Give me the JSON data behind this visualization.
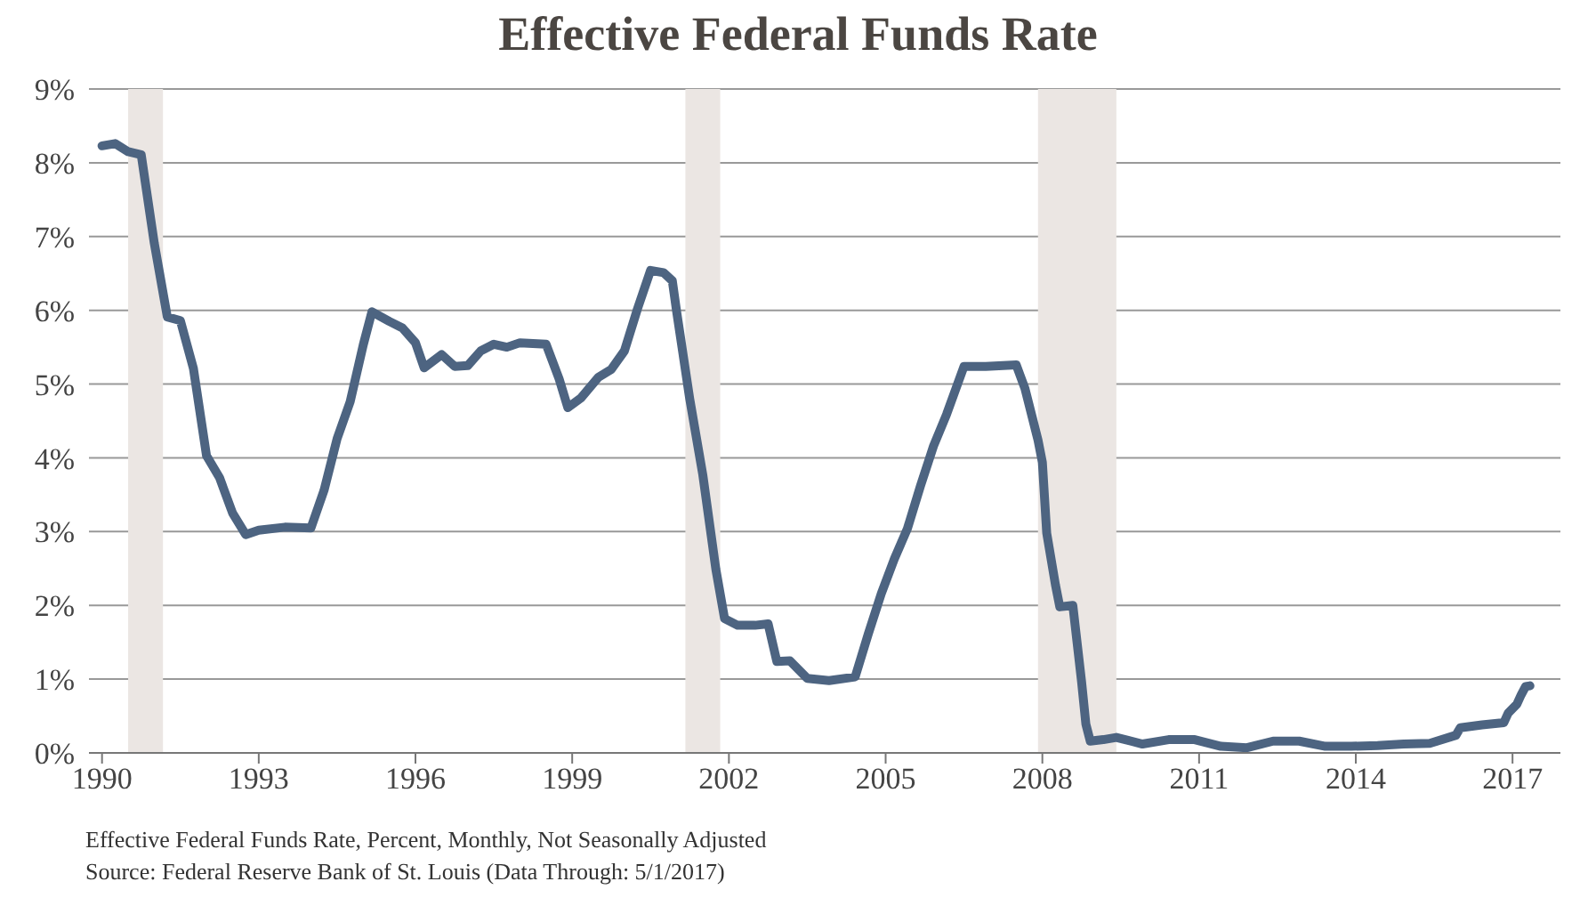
{
  "chart_data": {
    "type": "line",
    "title": "Effective Federal Funds Rate",
    "annotations": [
      "Effective Federal Funds Rate, Percent, Monthly, Not Seasonally Adjusted",
      "Source: Federal Reserve Bank of St. Louis (Data Through: 5/1/2017)"
    ],
    "x": [
      "1990-01",
      "1990-04",
      "1990-07",
      "1990-10",
      "1991-01",
      "1991-04",
      "1991-07",
      "1991-10",
      "1992-01",
      "1992-04",
      "1992-07",
      "1992-10",
      "1993-01",
      "1993-07",
      "1994-01",
      "1994-04",
      "1994-07",
      "1994-10",
      "1995-01",
      "1995-03",
      "1995-07",
      "1995-10",
      "1996-01",
      "1996-03",
      "1996-07",
      "1996-10",
      "1997-01",
      "1997-04",
      "1997-07",
      "1997-10",
      "1998-01",
      "1998-07",
      "1998-10",
      "1998-12",
      "1999-03",
      "1999-07",
      "1999-10",
      "2000-01",
      "2000-04",
      "2000-07",
      "2000-10",
      "2000-12",
      "2001-01",
      "2001-04",
      "2001-07",
      "2001-10",
      "2001-12",
      "2002-03",
      "2002-07",
      "2002-10",
      "2002-12",
      "2003-03",
      "2003-07",
      "2003-12",
      "2004-06",
      "2004-09",
      "2004-12",
      "2005-03",
      "2005-06",
      "2005-09",
      "2005-12",
      "2006-03",
      "2006-07",
      "2006-12",
      "2007-07",
      "2007-09",
      "2007-12",
      "2008-01",
      "2008-02",
      "2008-04",
      "2008-05",
      "2008-08",
      "2008-10",
      "2008-11",
      "2008-12",
      "2009-03",
      "2009-06",
      "2009-12",
      "2010-06",
      "2010-12",
      "2011-06",
      "2011-12",
      "2012-06",
      "2012-12",
      "2013-06",
      "2013-12",
      "2014-06",
      "2014-12",
      "2015-06",
      "2015-12",
      "2016-01",
      "2016-06",
      "2016-11",
      "2016-12",
      "2017-02",
      "2017-03",
      "2017-04",
      "2017-05"
    ],
    "series": [
      {
        "color": "#4d6481",
        "values": [
          8.23,
          8.26,
          8.15,
          8.11,
          6.91,
          5.91,
          5.86,
          5.21,
          4.03,
          3.73,
          3.25,
          2.96,
          3.02,
          3.06,
          3.05,
          3.56,
          4.26,
          4.76,
          5.53,
          5.98,
          5.85,
          5.76,
          5.56,
          5.22,
          5.4,
          5.24,
          5.25,
          5.45,
          5.54,
          5.5,
          5.56,
          5.54,
          5.07,
          4.68,
          4.81,
          5.09,
          5.2,
          5.45,
          6.02,
          6.54,
          6.51,
          6.4,
          5.98,
          4.8,
          3.77,
          2.49,
          1.82,
          1.73,
          1.73,
          1.75,
          1.24,
          1.25,
          1.01,
          0.98,
          1.03,
          1.61,
          2.16,
          2.63,
          3.04,
          3.62,
          4.16,
          4.59,
          5.24,
          5.24,
          5.26,
          4.94,
          4.24,
          3.94,
          2.98,
          2.28,
          1.98,
          2.0,
          0.97,
          0.39,
          0.16,
          0.18,
          0.21,
          0.12,
          0.18,
          0.18,
          0.09,
          0.07,
          0.16,
          0.16,
          0.09,
          0.09,
          0.1,
          0.12,
          0.13,
          0.24,
          0.34,
          0.38,
          0.41,
          0.54,
          0.66,
          0.79,
          0.9,
          0.91
        ]
      }
    ],
    "xlim": [
      "1989-10",
      "2017-12"
    ],
    "xticks": [
      "1990",
      "1993",
      "1996",
      "1999",
      "2002",
      "2005",
      "2008",
      "2011",
      "2014",
      "2017"
    ],
    "ylim": [
      0,
      9
    ],
    "yticks": [
      {
        "value": 0,
        "label": "0%"
      },
      {
        "value": 1,
        "label": "1%"
      },
      {
        "value": 2,
        "label": "2%"
      },
      {
        "value": 3,
        "label": "3%"
      },
      {
        "value": 4,
        "label": "4%"
      },
      {
        "value": 5,
        "label": "5%"
      },
      {
        "value": 6,
        "label": "6%"
      },
      {
        "value": 7,
        "label": "7%"
      },
      {
        "value": 8,
        "label": "8%"
      },
      {
        "value": 9,
        "label": "9%"
      }
    ],
    "bands": [
      {
        "axis": "x",
        "from": "1990-07",
        "to": "1991-03",
        "color": "#ebe6e3"
      },
      {
        "axis": "x",
        "from": "2001-03",
        "to": "2001-11",
        "color": "#ebe6e3"
      },
      {
        "axis": "x",
        "from": "2007-12",
        "to": "2009-06",
        "color": "#ebe6e3"
      }
    ],
    "grid": "y",
    "legend": false,
    "marker": "none",
    "line_style": "solid"
  }
}
